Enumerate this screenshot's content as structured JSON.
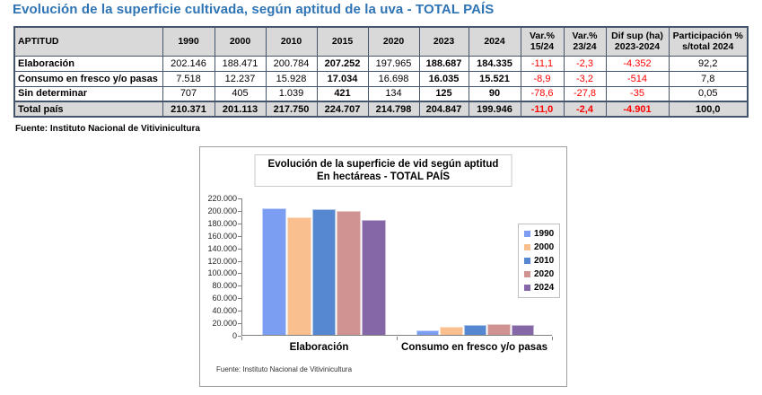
{
  "title": "Evolución de la superficie cultivada, según aptitud de la uva - TOTAL PAÍS",
  "table": {
    "columns": [
      "APTITUD",
      "1990",
      "2000",
      "2010",
      "2015",
      "2020",
      "2023",
      "2024",
      "Var.%\n15/24",
      "Var.%\n23/24",
      "Dif sup (ha)\n2023-2024",
      "Participación %\ns/total 2024"
    ],
    "rows": [
      {
        "label": "Elaboración",
        "values": [
          "202.146",
          "188.471",
          "200.784",
          "207.252",
          "197.965",
          "188.687",
          "184.335",
          "-11,1",
          "-2,3",
          "-4.352",
          "92,2"
        ]
      },
      {
        "label": "Consumo en fresco y/o pasas",
        "values": [
          "7.518",
          "12.237",
          "15.928",
          "17.034",
          "16.698",
          "16.035",
          "15.521",
          "-8,9",
          "-3,2",
          "-514",
          "7,8"
        ]
      },
      {
        "label": "Sin determinar",
        "values": [
          "707",
          "405",
          "1.039",
          "421",
          "134",
          "125",
          "90",
          "-78,6",
          "-27,8",
          "-35",
          "0,05"
        ]
      }
    ],
    "total": {
      "label": "Total país",
      "values": [
        "210.371",
        "201.113",
        "217.750",
        "224.707",
        "214.798",
        "204.847",
        "199.946",
        "-11,0",
        "-2,4",
        "-4.901",
        "100,0"
      ]
    },
    "source_note": "Fuente: Instituto Nacional de Vitivinicultura",
    "header_fill": "#D9D9D9",
    "border_color": "#44546A",
    "negative_color": "#FF0000",
    "title_color": "#2E74B5"
  },
  "chart": {
    "source_note": "Fuente: Instituto Nacional de Vitivinicultura"
  },
  "chart_data": {
    "type": "bar",
    "title": "Evolución de la superficie de vid según aptitud",
    "subtitle": "En hectáreas - TOTAL PAÍS",
    "categories": [
      "Elaboración",
      "Consumo en fresco y/o pasas"
    ],
    "series": [
      {
        "name": "1990",
        "color": "#7B9DF2",
        "values": [
          202146,
          7518
        ]
      },
      {
        "name": "2000",
        "color": "#FABF8F",
        "values": [
          188471,
          12237
        ]
      },
      {
        "name": "2010",
        "color": "#5588D0",
        "values": [
          200784,
          15928
        ]
      },
      {
        "name": "2020",
        "color": "#D19392",
        "values": [
          197965,
          16698
        ]
      },
      {
        "name": "2024",
        "color": "#8566A6",
        "values": [
          184335,
          15521
        ]
      }
    ],
    "ylim": [
      0,
      220000
    ],
    "ytick_step": 20000,
    "grid": false,
    "legend_position": "right"
  }
}
